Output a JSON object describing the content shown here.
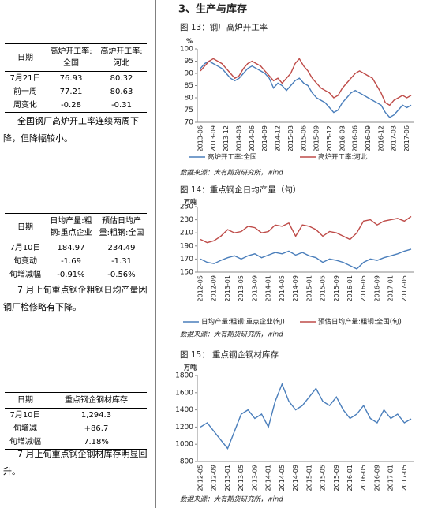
{
  "left": {
    "tables": [
      {
        "header": [
          "日期",
          "高炉开工率:全国",
          "高炉开工率:河北"
        ],
        "rows": [
          [
            "7月21日",
            "76.93",
            "80.32"
          ],
          [
            "前一周",
            "77.21",
            "80.63"
          ],
          [
            "周变化",
            "-0.28",
            "-0.31"
          ]
        ]
      },
      {
        "header": [
          "日期",
          "日均产量:粗钢:重点企业",
          "预估日均产量:粗钢:全国"
        ],
        "rows": [
          [
            "7月10日",
            "184.97",
            "234.49"
          ],
          [
            "旬变动",
            "-1.69",
            "-1.31"
          ],
          [
            "旬增减幅",
            "-0.91%",
            "-0.56%"
          ]
        ]
      },
      {
        "header": [
          "日期",
          "重点钢企钢材库存"
        ],
        "rows": [
          [
            "7月10日",
            "1,294.3"
          ],
          [
            "旬增减",
            "+86.7"
          ],
          [
            "旬增减幅",
            "7.18%"
          ]
        ]
      }
    ],
    "notes": [
      "全国钢厂高炉开工率连续两周下降，但降幅较小。",
      "7 月上旬重点钢企粗钢日均产量因钢厂检修略有下降。",
      "7 月上旬重点钢企钢材库存明显回升。"
    ]
  },
  "section_title": "3、生产与库存",
  "chart_data": [
    {
      "type": "line",
      "title": "图 13：钢厂高炉开工率",
      "unit": "%",
      "categories": [
        "2013-06",
        null,
        null,
        "2013-09",
        null,
        null,
        "2013-12",
        null,
        null,
        "2014-03",
        null,
        null,
        "2014-06",
        null,
        null,
        "2014-09",
        null,
        null,
        "2014-12",
        null,
        null,
        "2015-03",
        null,
        null,
        "2015-06",
        null,
        null,
        "2015-09",
        null,
        null,
        "2015-12",
        null,
        null,
        "2016-03",
        null,
        null,
        "2016-06",
        null,
        null,
        "2016-09",
        null,
        null,
        "2016-12",
        null,
        null,
        "2017-03",
        null,
        null,
        "2017-06",
        null
      ],
      "series": [
        {
          "name": "高炉开工率:全国",
          "color": "#4a7ebb",
          "values": [
            92,
            94,
            95,
            94,
            93,
            92,
            90,
            88,
            87,
            88,
            90,
            92,
            93,
            92,
            91,
            90,
            88,
            84,
            86,
            85,
            83,
            85,
            87,
            88,
            86,
            85,
            82,
            80,
            79,
            78,
            76,
            74,
            75,
            78,
            80,
            82,
            83,
            82,
            81,
            80,
            79,
            78,
            77,
            74,
            72,
            73,
            75,
            77,
            76,
            77
          ]
        },
        {
          "name": "高炉开工率:河北",
          "color": "#be4b48",
          "values": [
            91,
            93,
            95,
            96,
            95,
            94,
            92,
            90,
            88,
            89,
            92,
            94,
            95,
            94,
            93,
            91,
            89,
            87,
            88,
            86,
            88,
            90,
            94,
            96,
            93,
            91,
            88,
            86,
            84,
            83,
            82,
            80,
            81,
            84,
            86,
            88,
            90,
            91,
            90,
            89,
            88,
            85,
            82,
            78,
            77,
            79,
            80,
            81,
            80,
            81
          ]
        }
      ],
      "ylim": [
        70,
        100
      ],
      "yticks": [
        70,
        75,
        80,
        85,
        90,
        95,
        100
      ],
      "source": "数据来源：大有期货研究所，wind"
    },
    {
      "type": "line",
      "title": "图 14：重点钢企日均产量（旬）",
      "unit": "万吨",
      "categories": [
        "2012-05",
        null,
        "2012-09",
        null,
        "2013-01",
        null,
        "2013-05",
        null,
        "2013-09",
        null,
        "2014-01",
        null,
        "2014-05",
        null,
        "2014-09",
        null,
        "2015-01",
        null,
        "2015-05",
        null,
        "2015-09",
        null,
        "2016-01",
        null,
        "2016-05",
        null,
        "2016-09",
        null,
        "2017-01",
        null,
        "2017-05",
        null
      ],
      "series": [
        {
          "name": "日均产量:粗钢:重点企业(旬)",
          "color": "#4a7ebb",
          "values": [
            170,
            165,
            163,
            168,
            172,
            175,
            170,
            175,
            178,
            172,
            176,
            180,
            178,
            182,
            176,
            180,
            175,
            172,
            165,
            170,
            168,
            165,
            160,
            155,
            165,
            170,
            168,
            172,
            175,
            178,
            182,
            185
          ]
        },
        {
          "name": "预估日均产量:粗钢:全国(旬)",
          "color": "#be4b48",
          "values": [
            200,
            195,
            198,
            205,
            215,
            210,
            212,
            220,
            218,
            210,
            212,
            222,
            220,
            225,
            205,
            222,
            220,
            215,
            205,
            212,
            210,
            205,
            200,
            210,
            228,
            230,
            222,
            228,
            230,
            232,
            228,
            235
          ]
        }
      ],
      "ylim": [
        150,
        250
      ],
      "yticks": [
        150,
        170,
        190,
        210,
        230,
        250
      ],
      "source": "数据来源：大有期货研究所，wind"
    },
    {
      "type": "line",
      "title": "图 15：  重点钢企钢材库存",
      "unit": "万吨",
      "categories": [
        "2012-05",
        null,
        "2012-09",
        null,
        "2013-01",
        null,
        "2013-05",
        null,
        "2013-09",
        null,
        "2014-01",
        null,
        "2014-05",
        null,
        "2014-09",
        null,
        "2015-01",
        null,
        "2015-05",
        null,
        "2015-09",
        null,
        "2016-01",
        null,
        "2016-05",
        null,
        "2016-09",
        null,
        "2017-01",
        null,
        "2017-05",
        null
      ],
      "color": "#4a7ebb",
      "values": [
        1200,
        1250,
        1150,
        1050,
        950,
        1150,
        1350,
        1400,
        1300,
        1350,
        1200,
        1500,
        1700,
        1500,
        1400,
        1450,
        1550,
        1650,
        1500,
        1450,
        1550,
        1400,
        1300,
        1350,
        1450,
        1300,
        1250,
        1400,
        1300,
        1350,
        1250,
        1294.3
      ],
      "ylim": [
        800,
        1800
      ],
      "yticks": [
        800,
        1000,
        1200,
        1400,
        1600,
        1800
      ],
      "source": "数据来源：大有期货研究所，wind"
    }
  ]
}
